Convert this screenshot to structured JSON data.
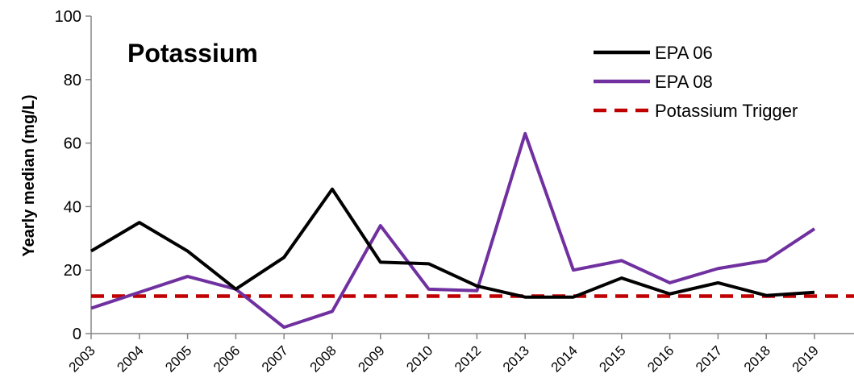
{
  "chart_data": {
    "type": "line",
    "title": "Potassium",
    "ylabel": "Yearly median (mg/L)",
    "xlabel": "",
    "ylim": [
      0,
      100
    ],
    "yticks": [
      0,
      20,
      40,
      60,
      80,
      100
    ],
    "categories": [
      "2003",
      "2004",
      "2005",
      "2006",
      "2007",
      "2008",
      "2009",
      "2010",
      "2012",
      "2013",
      "2014",
      "2015",
      "2016",
      "2017",
      "2018",
      "2019"
    ],
    "series": [
      {
        "name": "EPA 06",
        "color": "#000000",
        "style": "solid",
        "values": [
          26,
          35,
          26,
          14,
          24,
          45.5,
          22.5,
          22,
          15,
          11.5,
          11.5,
          17.5,
          12.5,
          16,
          12,
          13
        ]
      },
      {
        "name": "EPA 08",
        "color": "#7030A0",
        "style": "solid",
        "values": [
          8,
          13,
          18,
          14,
          2,
          7,
          34,
          14,
          13.5,
          63,
          20,
          23,
          16,
          20.5,
          23,
          33
        ]
      },
      {
        "name": "Potassium Trigger",
        "color": "#C00000",
        "style": "dashed",
        "constant": 11.8
      }
    ],
    "legend_position": "top-right",
    "grid": false
  }
}
